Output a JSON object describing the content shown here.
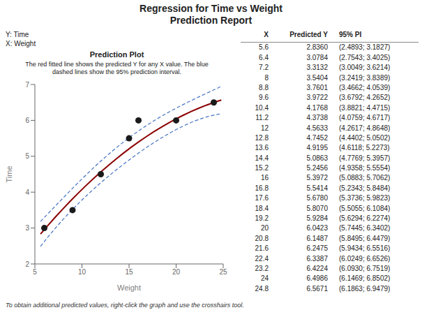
{
  "chart_data": {
    "type": "scatter",
    "title": "Regression for Time vs Weight\nPrediction Report",
    "annotations": [
      "Y: Time",
      "X: Weight"
    ],
    "plot_title": "Prediction Plot",
    "subtitle": "The red fitted line shows the predicted Y for any X value. The blue\ndashed lines show the 95% prediction interval.",
    "xlabel": "Weight",
    "ylabel": "Time",
    "footer": "To obtain additional predicted values, right-click the graph and use the crosshairs tool.",
    "xlim": [
      5,
      25
    ],
    "ylim": [
      2,
      7
    ],
    "xticks": [
      5,
      10,
      15,
      20,
      25
    ],
    "yticks": [
      2,
      3,
      4,
      5,
      6,
      7
    ],
    "grid": false,
    "series": [
      {
        "type": "line",
        "color": "#8b0000",
        "line_style": "solid",
        "x": [
          5.6,
          6.4,
          7.2,
          8,
          8.8,
          9.6,
          10.4,
          11.2,
          12,
          12.8,
          13.6,
          14.4,
          15.2,
          16,
          16.8,
          17.6,
          18.4,
          19.2,
          20,
          20.8,
          21.6,
          22.4,
          23.2,
          24,
          24.8
        ],
        "values": [
          2.836,
          3.0784,
          3.3132,
          3.5404,
          3.7601,
          3.9722,
          4.1768,
          4.3738,
          4.5633,
          4.7452,
          4.9195,
          5.0863,
          5.2456,
          5.3972,
          5.5414,
          5.678,
          5.807,
          5.9284,
          6.0423,
          6.1487,
          6.2475,
          6.3387,
          6.4224,
          6.4986,
          6.5671
        ]
      },
      {
        "type": "line",
        "color": "#4472c4",
        "line_style": "dashed",
        "x": [
          5.6,
          6.4,
          7.2,
          8,
          8.8,
          9.6,
          10.4,
          11.2,
          12,
          12.8,
          13.6,
          14.4,
          15.2,
          16,
          16.8,
          17.6,
          18.4,
          19.2,
          20,
          20.8,
          21.6,
          22.4,
          23.2,
          24,
          24.8
        ],
        "values": [
          2.4893,
          2.7543,
          3.0049,
          3.2419,
          3.4662,
          3.6792,
          3.8821,
          4.0759,
          4.2617,
          4.4402,
          4.6118,
          4.7769,
          4.9358,
          5.0883,
          5.2343,
          5.3736,
          5.5055,
          5.6294,
          5.7445,
          5.8495,
          5.9434,
          6.0249,
          6.093,
          6.1469,
          6.1863
        ]
      },
      {
        "type": "line",
        "color": "#4472c4",
        "line_style": "dashed",
        "x": [
          5.6,
          6.4,
          7.2,
          8,
          8.8,
          9.6,
          10.4,
          11.2,
          12,
          12.8,
          13.6,
          14.4,
          15.2,
          16,
          16.8,
          17.6,
          18.4,
          19.2,
          20,
          20.8,
          21.6,
          22.4,
          23.2,
          24,
          24.8
        ],
        "values": [
          3.1827,
          3.4025,
          3.6214,
          3.8389,
          4.0539,
          4.2652,
          4.4715,
          4.6717,
          4.8648,
          5.0502,
          5.2273,
          5.3957,
          5.5554,
          5.7062,
          5.8484,
          5.9823,
          6.1084,
          6.2274,
          6.3402,
          6.4479,
          6.5516,
          6.6526,
          6.7519,
          6.8502,
          6.9479
        ]
      },
      {
        "type": "scatter",
        "color": "#1a1a1a",
        "marker": "circle",
        "x": [
          6,
          9,
          12,
          15,
          16,
          20,
          24
        ],
        "values": [
          3.0,
          3.5,
          4.5,
          5.5,
          6.0,
          6.0,
          6.5
        ]
      }
    ],
    "table": {
      "columns": [
        "X",
        "Predicted Y",
        "95% PI"
      ],
      "rows": [
        [
          "5.6",
          "2.8360",
          "(2.4893; 3.1827)"
        ],
        [
          "6.4",
          "3.0784",
          "(2.7543; 3.4025)"
        ],
        [
          "7.2",
          "3.3132",
          "(3.0049; 3.6214)"
        ],
        [
          "8",
          "3.5404",
          "(3.2419; 3.8389)"
        ],
        [
          "8.8",
          "3.7601",
          "(3.4662; 4.0539)"
        ],
        [
          "9.6",
          "3.9722",
          "(3.6792; 4.2652)"
        ],
        [
          "10.4",
          "4.1768",
          "(3.8821; 4.4715)"
        ],
        [
          "11.2",
          "4.3738",
          "(4.0759; 4.6717)"
        ],
        [
          "12",
          "4.5633",
          "(4.2617; 4.8648)"
        ],
        [
          "12.8",
          "4.7452",
          "(4.4402; 5.0502)"
        ],
        [
          "13.6",
          "4.9195",
          "(4.6118; 5.2273)"
        ],
        [
          "14.4",
          "5.0863",
          "(4.7769; 5.3957)"
        ],
        [
          "15.2",
          "5.2456",
          "(4.9358; 5.5554)"
        ],
        [
          "16",
          "5.3972",
          "(5.0883; 5.7062)"
        ],
        [
          "16.8",
          "5.5414",
          "(5.2343; 5.8484)"
        ],
        [
          "17.6",
          "5.6780",
          "(5.3736; 5.9823)"
        ],
        [
          "18.4",
          "5.8070",
          "(5.5055; 6.1084)"
        ],
        [
          "19.2",
          "5.9284",
          "(5.6294; 6.2274)"
        ],
        [
          "20",
          "6.0423",
          "(5.7445; 6.3402)"
        ],
        [
          "20.8",
          "6.1487",
          "(5.8495; 6.4479)"
        ],
        [
          "21.6",
          "6.2475",
          "(5.9434; 6.5516)"
        ],
        [
          "22.4",
          "6.3387",
          "(6.0249; 6.6526)"
        ],
        [
          "23.2",
          "6.4224",
          "(6.0930; 6.7519)"
        ],
        [
          "24",
          "6.4986",
          "(6.1469; 6.8502)"
        ],
        [
          "24.8",
          "6.5671",
          "(6.1863; 6.9479)"
        ]
      ]
    }
  }
}
